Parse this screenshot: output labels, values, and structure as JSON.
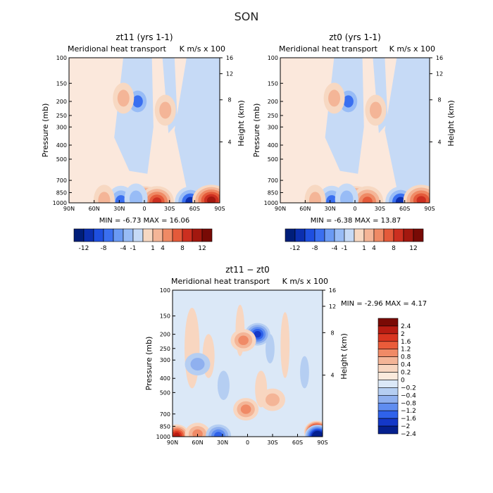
{
  "page_title": "SON",
  "chart_data": [
    {
      "type": "heatmap",
      "title": "zt11 (yrs 1-1)",
      "subtitle": "Meridional heat transport",
      "units": "K m/s x 100",
      "xlabel": "",
      "ylabel": "Pressure (mb)",
      "ylabel_right": "Height (km)",
      "x_ticks": [
        "90N",
        "60N",
        "30N",
        "0",
        "30S",
        "60S",
        "90S"
      ],
      "y_ticks": [
        "100",
        "150",
        "200",
        "250",
        "300",
        "400",
        "500",
        "700",
        "850",
        "1000"
      ],
      "y_ticks_right": [
        "16",
        "12",
        "8",
        "4"
      ],
      "stats": "MIN =   -6.73   MAX =   16.06",
      "colorbar_labels": [
        "-12",
        "-8",
        "-4",
        "-1",
        "1",
        "4",
        "8",
        "12"
      ],
      "features": [
        {
          "lat": 1,
          "p": 980,
          "value": 16.06
        },
        {
          "lat": -15,
          "p": 980,
          "value": 8
        },
        {
          "lat": -55,
          "p": 985,
          "value": -6.73
        },
        {
          "lat": 28,
          "p": 975,
          "value": -5
        },
        {
          "lat": 10,
          "p": 940,
          "value": -3
        },
        {
          "lat": 48,
          "p": 960,
          "value": 2
        },
        {
          "lat": 8,
          "p": 200,
          "value": -4
        },
        {
          "lat": 25,
          "p": 190,
          "value": 2
        },
        {
          "lat": -25,
          "p": 230,
          "value": 2
        },
        {
          "lat": -80,
          "p": 960,
          "value": 10
        }
      ]
    },
    {
      "type": "heatmap",
      "title": "zt0 (yrs 1-1)",
      "subtitle": "Meridional heat transport",
      "units": "K m/s x 100",
      "xlabel": "",
      "ylabel": "Pressure (mb)",
      "ylabel_right": "Height (km)",
      "x_ticks": [
        "90N",
        "60N",
        "30N",
        "0",
        "30S",
        "60S",
        "90S"
      ],
      "y_ticks": [
        "100",
        "150",
        "200",
        "250",
        "300",
        "400",
        "500",
        "700",
        "850",
        "1000"
      ],
      "y_ticks_right": [
        "16",
        "12",
        "8",
        "4"
      ],
      "stats": "MIN =   -6.38   MAX =   13.87",
      "colorbar_labels": [
        "-12",
        "-8",
        "-4",
        "-1",
        "1",
        "4",
        "8",
        "12"
      ],
      "features": [
        {
          "lat": 1,
          "p": 980,
          "value": 13.87
        },
        {
          "lat": -15,
          "p": 980,
          "value": 7
        },
        {
          "lat": -55,
          "p": 985,
          "value": -6.38
        },
        {
          "lat": 28,
          "p": 975,
          "value": -5
        },
        {
          "lat": 10,
          "p": 940,
          "value": -3
        },
        {
          "lat": 48,
          "p": 960,
          "value": 2
        },
        {
          "lat": 8,
          "p": 200,
          "value": -4
        },
        {
          "lat": 25,
          "p": 190,
          "value": 2
        },
        {
          "lat": -25,
          "p": 230,
          "value": 2
        },
        {
          "lat": -80,
          "p": 960,
          "value": 9
        }
      ]
    },
    {
      "type": "heatmap",
      "title": "zt11 − zt0",
      "subtitle": "Meridional heat transport",
      "units": "K m/s x 100",
      "xlabel": "",
      "ylabel": "Pressure (mb)",
      "ylabel_right": "Height (km)",
      "x_ticks": [
        "90N",
        "60N",
        "30N",
        "0",
        "30S",
        "60S",
        "90S"
      ],
      "y_ticks": [
        "100",
        "150",
        "200",
        "250",
        "300",
        "400",
        "500",
        "700",
        "850",
        "1000"
      ],
      "y_ticks_right": [
        "16",
        "12",
        "8",
        "4"
      ],
      "stats": "MIN =   -2.96   MAX =   4.17",
      "colorbar_labels": [
        "2.4",
        "2",
        "1.6",
        "1.2",
        "0.8",
        "0.4",
        "0.2",
        "0",
        "−0.2",
        "−0.4",
        "−0.8",
        "−1.2",
        "−1.6",
        "−2",
        "−2.4"
      ],
      "features": [
        {
          "lat": -83,
          "p": 930,
          "value": 4.17
        },
        {
          "lat": -84,
          "p": 990,
          "value": -2.96
        },
        {
          "lat": 85,
          "p": 985,
          "value": 2
        },
        {
          "lat": 60,
          "p": 960,
          "value": 1
        },
        {
          "lat": 35,
          "p": 985,
          "value": -1.5
        },
        {
          "lat": 2,
          "p": 650,
          "value": 1
        },
        {
          "lat": -12,
          "p": 200,
          "value": -1.6
        },
        {
          "lat": 5,
          "p": 220,
          "value": 0.8
        },
        {
          "lat": -30,
          "p": 560,
          "value": 0.6
        },
        {
          "lat": 60,
          "p": 320,
          "value": -0.6
        }
      ]
    }
  ]
}
